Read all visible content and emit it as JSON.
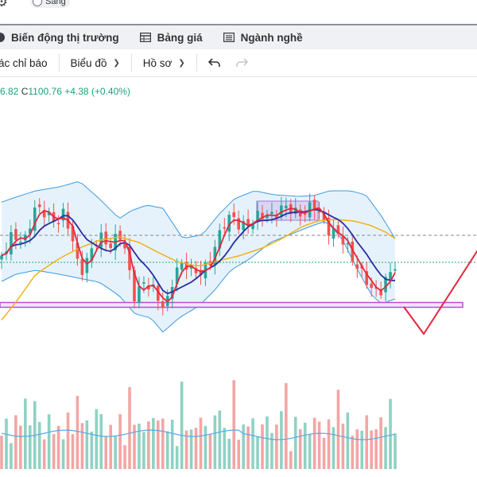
{
  "theme": {
    "label": "Sáng"
  },
  "nav": {
    "items": [
      {
        "label": "Biến động thị trường",
        "icon": "globe-icon"
      },
      {
        "label": "Bảng giá",
        "icon": "table-icon"
      },
      {
        "label": "Ngành nghề",
        "icon": "list-icon"
      }
    ]
  },
  "toolbar": {
    "indicators_label": "ác chỉ báo",
    "chart_label": "Biểu đồ",
    "profile_label": "Hồ sơ",
    "undo_icon": "undo-icon",
    "redo_icon": "redo-icon"
  },
  "legend": {
    "low": "6.82",
    "close_prefix": "C",
    "close": "1100.76",
    "change": "+4.38 (+0.40%)"
  },
  "colors": {
    "up": "#26a69a",
    "down": "#ef5350",
    "ma_short": "#e3273d",
    "ma_mid": "#2a2ea0",
    "ma_long": "#f0b21a",
    "band": "#3d9ae0",
    "band_fill": "#e6f2fb",
    "zone_line": "#b84fc8",
    "box": "#c9b3ea",
    "arrow": "#e3273d",
    "price_line": "#22aa77",
    "ref_line": "#888888"
  }
}
